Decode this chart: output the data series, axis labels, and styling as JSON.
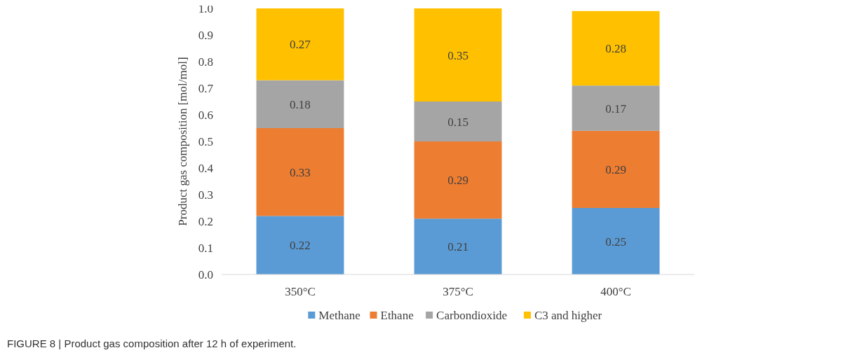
{
  "chart_data": {
    "type": "bar",
    "stacked": true,
    "ylabel": "Product gas composition [mol/mol]",
    "categories": [
      "350°C",
      "375°C",
      "400°C"
    ],
    "series": [
      {
        "name": "Methane",
        "color": "#5b9bd5",
        "values": [
          0.22,
          0.21,
          0.25
        ]
      },
      {
        "name": "Ethane",
        "color": "#ed7d31",
        "values": [
          0.33,
          0.29,
          0.29
        ]
      },
      {
        "name": "Carbondioxide",
        "color": "#a5a5a5",
        "values": [
          0.18,
          0.15,
          0.17
        ]
      },
      {
        "name": "C3 and higher",
        "color": "#ffc000",
        "values": [
          0.27,
          0.35,
          0.28
        ]
      }
    ],
    "ylim": [
      0,
      1
    ],
    "yticks": [
      {
        "value": 0,
        "label": "0.0"
      },
      0.1,
      0.2,
      0.3,
      0.4,
      0.5,
      0.6,
      0.7,
      0.8,
      0.9,
      {
        "value": 1,
        "label": "1.0"
      }
    ],
    "data_labels": true,
    "legend": "bottom",
    "grid": false,
    "annotations": [
      "FIGURE 8 | Product gas composition after 12 h of experiment."
    ]
  }
}
